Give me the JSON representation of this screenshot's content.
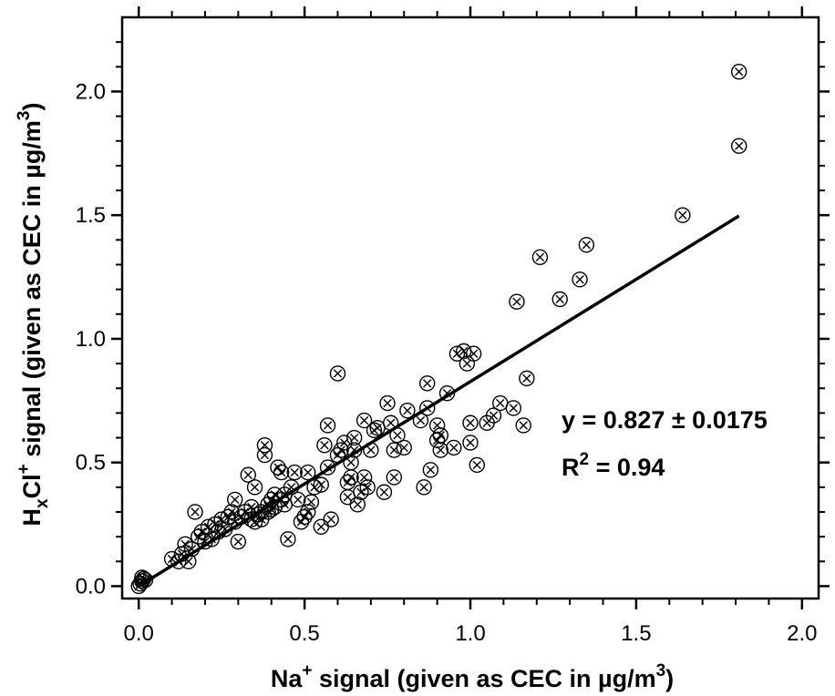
{
  "chart_data": {
    "type": "scatter",
    "xlabel": {
      "base": "Na",
      "sup": "+",
      "rest": " signal (given as CEC in µg/m",
      "unit_sup": "3",
      "close": ")"
    },
    "ylabel": {
      "h": "H",
      "sub": "x",
      "cl": "Cl",
      "sup": "+",
      "rest": " signal (given as CEC in µg/m",
      "unit_sup": "3",
      "close": ")"
    },
    "xlim": [
      -0.05,
      2.05
    ],
    "ylim": [
      -0.05,
      2.3
    ],
    "xticks": [
      "0.0",
      "0.5",
      "1.0",
      "1.5",
      "2.0"
    ],
    "yticks": [
      "0.0",
      "0.5",
      "1.0",
      "1.5",
      "2.0"
    ],
    "grid": false,
    "marker": "circle-x",
    "fit": {
      "slope": 0.827,
      "x_range": [
        0.0,
        1.81
      ]
    },
    "annotations": {
      "equation": "y = 0.827 ± 0.0175",
      "r2_label": "R",
      "r2_sup": "2",
      "r2_value": " = 0.94"
    },
    "points": [
      [
        0.0,
        0.0
      ],
      [
        0.005,
        0.01
      ],
      [
        0.01,
        0.02
      ],
      [
        0.015,
        0.03
      ],
      [
        0.02,
        0.025
      ],
      [
        0.01,
        0.035
      ],
      [
        0.1,
        0.11
      ],
      [
        0.12,
        0.1
      ],
      [
        0.13,
        0.13
      ],
      [
        0.14,
        0.17
      ],
      [
        0.15,
        0.1
      ],
      [
        0.16,
        0.15
      ],
      [
        0.17,
        0.3
      ],
      [
        0.18,
        0.2
      ],
      [
        0.19,
        0.22
      ],
      [
        0.2,
        0.18
      ],
      [
        0.21,
        0.24
      ],
      [
        0.22,
        0.19
      ],
      [
        0.23,
        0.25
      ],
      [
        0.24,
        0.22
      ],
      [
        0.25,
        0.27
      ],
      [
        0.26,
        0.23
      ],
      [
        0.27,
        0.28
      ],
      [
        0.28,
        0.3
      ],
      [
        0.29,
        0.26
      ],
      [
        0.29,
        0.35
      ],
      [
        0.3,
        0.18
      ],
      [
        0.31,
        0.28
      ],
      [
        0.32,
        0.3
      ],
      [
        0.33,
        0.45
      ],
      [
        0.34,
        0.27
      ],
      [
        0.34,
        0.32
      ],
      [
        0.35,
        0.26
      ],
      [
        0.35,
        0.4
      ],
      [
        0.36,
        0.29
      ],
      [
        0.37,
        0.3
      ],
      [
        0.37,
        0.27
      ],
      [
        0.38,
        0.57
      ],
      [
        0.38,
        0.53
      ],
      [
        0.39,
        0.33
      ],
      [
        0.39,
        0.3
      ],
      [
        0.4,
        0.35
      ],
      [
        0.4,
        0.31
      ],
      [
        0.41,
        0.32
      ],
      [
        0.41,
        0.37
      ],
      [
        0.42,
        0.48
      ],
      [
        0.43,
        0.46
      ],
      [
        0.43,
        0.35
      ],
      [
        0.44,
        0.33
      ],
      [
        0.44,
        0.37
      ],
      [
        0.45,
        0.19
      ],
      [
        0.46,
        0.4
      ],
      [
        0.47,
        0.46
      ],
      [
        0.48,
        0.35
      ],
      [
        0.49,
        0.26
      ],
      [
        0.5,
        0.28
      ],
      [
        0.51,
        0.3
      ],
      [
        0.51,
        0.46
      ],
      [
        0.52,
        0.34
      ],
      [
        0.53,
        0.4
      ],
      [
        0.55,
        0.24
      ],
      [
        0.55,
        0.41
      ],
      [
        0.56,
        0.57
      ],
      [
        0.57,
        0.48
      ],
      [
        0.57,
        0.65
      ],
      [
        0.58,
        0.27
      ],
      [
        0.6,
        0.86
      ],
      [
        0.6,
        0.53
      ],
      [
        0.61,
        0.55
      ],
      [
        0.62,
        0.58
      ],
      [
        0.63,
        0.36
      ],
      [
        0.63,
        0.42
      ],
      [
        0.64,
        0.44
      ],
      [
        0.64,
        0.5
      ],
      [
        0.65,
        0.55
      ],
      [
        0.65,
        0.6
      ],
      [
        0.66,
        0.33
      ],
      [
        0.67,
        0.38
      ],
      [
        0.68,
        0.44
      ],
      [
        0.68,
        0.67
      ],
      [
        0.69,
        0.4
      ],
      [
        0.7,
        0.55
      ],
      [
        0.71,
        0.63
      ],
      [
        0.72,
        0.64
      ],
      [
        0.74,
        0.38
      ],
      [
        0.75,
        0.74
      ],
      [
        0.76,
        0.66
      ],
      [
        0.77,
        0.44
      ],
      [
        0.77,
        0.55
      ],
      [
        0.78,
        0.61
      ],
      [
        0.8,
        0.56
      ],
      [
        0.81,
        0.71
      ],
      [
        0.85,
        0.67
      ],
      [
        0.86,
        0.4
      ],
      [
        0.87,
        0.82
      ],
      [
        0.87,
        0.72
      ],
      [
        0.88,
        0.47
      ],
      [
        0.9,
        0.59
      ],
      [
        0.9,
        0.65
      ],
      [
        0.91,
        0.55
      ],
      [
        0.91,
        0.61
      ],
      [
        0.93,
        0.78
      ],
      [
        0.95,
        0.56
      ],
      [
        0.96,
        0.94
      ],
      [
        0.98,
        0.95
      ],
      [
        0.99,
        0.9
      ],
      [
        1.0,
        0.58
      ],
      [
        1.0,
        0.66
      ],
      [
        1.01,
        0.94
      ],
      [
        1.02,
        0.49
      ],
      [
        1.05,
        0.66
      ],
      [
        1.07,
        0.69
      ],
      [
        1.09,
        0.74
      ],
      [
        1.13,
        0.72
      ],
      [
        1.14,
        1.15
      ],
      [
        1.16,
        0.65
      ],
      [
        1.17,
        0.84
      ],
      [
        1.21,
        1.33
      ],
      [
        1.27,
        1.16
      ],
      [
        1.33,
        1.24
      ],
      [
        1.35,
        1.38
      ],
      [
        1.64,
        1.5
      ],
      [
        1.81,
        2.08
      ],
      [
        1.81,
        1.78
      ]
    ]
  }
}
